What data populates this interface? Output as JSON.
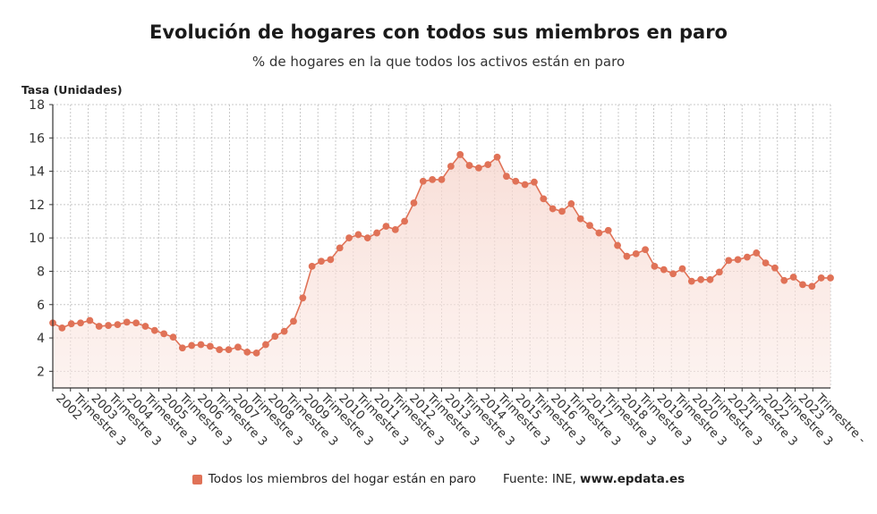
{
  "chart_data": {
    "type": "line",
    "title": "Evolución de hogares con todos sus miembros en paro",
    "subtitle": "% de hogares en la que todos los activos están en paro",
    "ylabel": "Tasa (Unidades)",
    "ylim": [
      1,
      18
    ],
    "yticks": [
      2,
      4,
      6,
      8,
      10,
      12,
      14,
      16,
      18
    ],
    "grid": true,
    "xtick_labels": [
      "2002",
      "Trimestre 3",
      "2003",
      "Trimestre 3",
      "2004",
      "Trimestre 3",
      "2005",
      "Trimestre 3",
      "2006",
      "Trimestre 3",
      "2007",
      "Trimestre 3",
      "2008",
      "Trimestre 3",
      "2009",
      "Trimestre 3",
      "2010",
      "Trimestre 3",
      "2011",
      "Trimestre 3",
      "2012",
      "Trimestre 3",
      "2013",
      "Trimestre 3",
      "2014",
      "Trimestre 3",
      "2015",
      "Trimestre 3",
      "2016",
      "Trimestre 3",
      "2017",
      "Trimestre 3",
      "2018",
      "Trimestre 3",
      "2019",
      "Trimestre 3",
      "2020",
      "Trimestre 3",
      "2021",
      "Trimestre 3",
      "2022",
      "Trimestre 3",
      "2023",
      "Trimestre -"
    ],
    "series": [
      {
        "name": "Todos los miembros del hogar están en paro",
        "color": "#e07257",
        "values": [
          4.9,
          4.6,
          4.85,
          4.9,
          5.05,
          4.7,
          4.75,
          4.8,
          4.95,
          4.9,
          4.7,
          4.45,
          4.25,
          4.05,
          3.4,
          3.55,
          3.6,
          3.5,
          3.3,
          3.3,
          3.45,
          3.15,
          3.1,
          3.6,
          4.1,
          4.4,
          5.0,
          6.4,
          8.3,
          8.6,
          8.7,
          9.4,
          10.0,
          10.2,
          10.0,
          10.3,
          10.7,
          10.5,
          11.0,
          12.1,
          13.4,
          13.5,
          13.5,
          14.3,
          15.0,
          14.35,
          14.2,
          14.4,
          14.85,
          13.7,
          13.4,
          13.2,
          13.35,
          12.35,
          11.75,
          11.6,
          12.05,
          11.15,
          10.75,
          10.3,
          10.45,
          9.55,
          8.9,
          9.05,
          9.3,
          8.3,
          8.1,
          7.85,
          8.15,
          7.4,
          7.5,
          7.5,
          7.95,
          8.65,
          8.7,
          8.85,
          9.1,
          8.5,
          8.2,
          7.45,
          7.65,
          7.2,
          7.1,
          7.6,
          7.6
        ]
      }
    ]
  },
  "legend": {
    "label": "Todos los miembros del hogar están en paro",
    "source_prefix": "Fuente: INE,",
    "source_site": "www.epdata.es"
  }
}
